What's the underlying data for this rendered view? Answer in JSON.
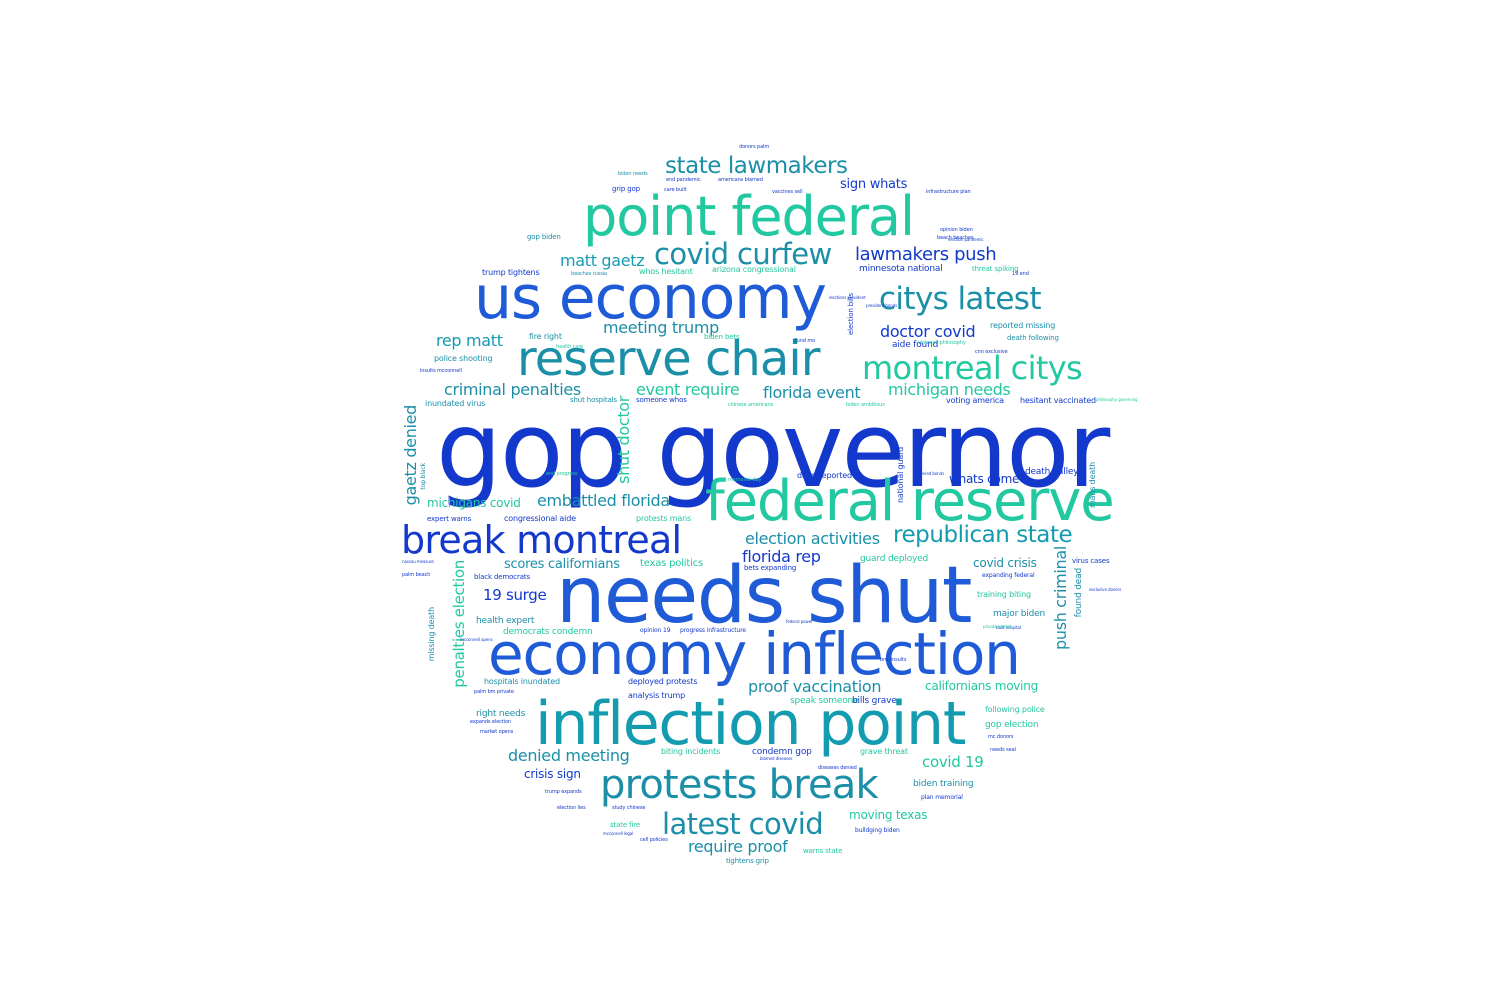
{
  "palette": {
    "blue": "#1339cc",
    "blue2": "#1f5bd6",
    "teal": "#139bb0",
    "teal2": "#1b8fa8",
    "green": "#21c8a0",
    "green2": "#2ed4a8"
  },
  "words": [
    {
      "text": "gop governor",
      "color": "blue"
    },
    {
      "text": "needs shut",
      "color": "blue2"
    },
    {
      "text": "us economy",
      "color": "blue2"
    },
    {
      "text": "economy inflection",
      "color": "blue2"
    },
    {
      "text": "inflection point",
      "color": "teal"
    },
    {
      "text": "federal reserve",
      "color": "green"
    },
    {
      "text": "point federal",
      "color": "green"
    },
    {
      "text": "reserve chair",
      "color": "teal2"
    },
    {
      "text": "break montreal",
      "color": "blue"
    },
    {
      "text": "protests break",
      "color": "teal2"
    },
    {
      "text": "latest covid",
      "color": "teal2"
    },
    {
      "text": "montreal citys",
      "color": "green"
    },
    {
      "text": "citys latest",
      "color": "teal2"
    },
    {
      "text": "covid curfew",
      "color": "teal2"
    },
    {
      "text": "state lawmakers",
      "color": "teal2"
    },
    {
      "text": "republican state",
      "color": "teal"
    },
    {
      "text": "lawmakers push",
      "color": "blue"
    },
    {
      "text": "matt gaetz",
      "color": "teal"
    },
    {
      "text": "meeting trump",
      "color": "teal2"
    },
    {
      "text": "rep matt",
      "color": "teal"
    },
    {
      "text": "doctor covid",
      "color": "blue"
    },
    {
      "text": "criminal penalties",
      "color": "teal2"
    },
    {
      "text": "event require",
      "color": "green"
    },
    {
      "text": "florida event",
      "color": "teal2"
    },
    {
      "text": "michigan needs",
      "color": "green"
    },
    {
      "text": "embattled florida",
      "color": "teal2"
    },
    {
      "text": "election activities",
      "color": "teal2"
    },
    {
      "text": "florida rep",
      "color": "blue"
    },
    {
      "text": "proof vaccination",
      "color": "teal2"
    },
    {
      "text": "denied meeting",
      "color": "teal2"
    },
    {
      "text": "require proof",
      "color": "teal2"
    },
    {
      "text": "covid 19",
      "color": "green"
    },
    {
      "text": "19 surge",
      "color": "blue"
    },
    {
      "text": "scores californians",
      "color": "teal2"
    },
    {
      "text": "sign whats",
      "color": "blue"
    },
    {
      "text": "whats come",
      "color": "blue"
    },
    {
      "text": "covid crisis",
      "color": "teal2"
    },
    {
      "text": "crisis sign",
      "color": "blue"
    },
    {
      "text": "californians moving",
      "color": "green"
    },
    {
      "text": "moving texas",
      "color": "green"
    },
    {
      "text": "michigans covid",
      "color": "green"
    },
    {
      "text": "texas politics",
      "color": "green"
    },
    {
      "text": "minnesota national",
      "color": "blue"
    },
    {
      "text": "aide found",
      "color": "blue"
    },
    {
      "text": "major biden",
      "color": "teal2"
    },
    {
      "text": "gop election",
      "color": "green"
    },
    {
      "text": "death valley",
      "color": "blue"
    },
    {
      "text": "biden training",
      "color": "teal2"
    },
    {
      "text": "right needs",
      "color": "teal2"
    },
    {
      "text": "health expert",
      "color": "teal2"
    },
    {
      "text": "democrats condemn",
      "color": "green"
    },
    {
      "text": "hospitals inundated",
      "color": "teal2"
    },
    {
      "text": "deployed protests",
      "color": "blue"
    },
    {
      "text": "analysis trump",
      "color": "blue"
    },
    {
      "text": "speak someone",
      "color": "green"
    },
    {
      "text": "bills grave",
      "color": "blue"
    },
    {
      "text": "condemn gop",
      "color": "blue"
    },
    {
      "text": "biting incidents",
      "color": "green"
    },
    {
      "text": "grave threat",
      "color": "green"
    },
    {
      "text": "guard deployed",
      "color": "green"
    },
    {
      "text": "bets expanding",
      "color": "blue"
    },
    {
      "text": "expanding federal",
      "color": "blue"
    },
    {
      "text": "training biting",
      "color": "green"
    },
    {
      "text": "following police",
      "color": "green"
    },
    {
      "text": "police shooting",
      "color": "teal2"
    },
    {
      "text": "inundated virus",
      "color": "teal2"
    },
    {
      "text": "shut hospitals",
      "color": "teal2"
    },
    {
      "text": "someone whos",
      "color": "blue"
    },
    {
      "text": "voting america",
      "color": "blue"
    },
    {
      "text": "hesitant vaccinated",
      "color": "blue"
    },
    {
      "text": "reported missing",
      "color": "teal2"
    },
    {
      "text": "death following",
      "color": "teal2"
    },
    {
      "text": "dead reported",
      "color": "blue"
    },
    {
      "text": "expert warns",
      "color": "blue"
    },
    {
      "text": "congressional aide",
      "color": "blue"
    },
    {
      "text": "protests mans",
      "color": "green"
    },
    {
      "text": "black democrats",
      "color": "blue"
    },
    {
      "text": "palm beach",
      "color": "blue"
    },
    {
      "text": "trump tightens",
      "color": "blue"
    },
    {
      "text": "gop biden",
      "color": "teal2"
    },
    {
      "text": "grip gop",
      "color": "blue"
    },
    {
      "text": "whos hesitant",
      "color": "green"
    },
    {
      "text": "arizona congressional",
      "color": "green"
    },
    {
      "text": "threat spiking",
      "color": "green"
    },
    {
      "text": "fire right",
      "color": "teal2"
    },
    {
      "text": "biden bets",
      "color": "green"
    },
    {
      "text": "health care",
      "color": "green"
    },
    {
      "text": "warns state",
      "color": "green"
    },
    {
      "text": "tightens grip",
      "color": "teal2"
    },
    {
      "text": "bulldging biden",
      "color": "blue"
    },
    {
      "text": "state fire",
      "color": "green"
    },
    {
      "text": "opinion 19",
      "color": "blue"
    },
    {
      "text": "progress infrastructure",
      "color": "blue"
    },
    {
      "text": "plan memorial",
      "color": "blue"
    },
    {
      "text": "virus cases",
      "color": "blue"
    },
    {
      "text": "gaetz denied",
      "color": "teal2"
    },
    {
      "text": "shut doctor",
      "color": "green"
    },
    {
      "text": "penalties election",
      "color": "green"
    },
    {
      "text": "push criminal",
      "color": "teal2"
    },
    {
      "text": "found dead",
      "color": "teal2"
    },
    {
      "text": "national guard",
      "color": "blue"
    },
    {
      "text": "missing death",
      "color": "teal2"
    },
    {
      "text": "mans death",
      "color": "teal2"
    },
    {
      "text": "election bills",
      "color": "blue"
    },
    {
      "text": "top black",
      "color": "teal2"
    },
    {
      "text": "donors palm",
      "color": "blue"
    },
    {
      "text": "biden needs",
      "color": "teal2"
    },
    {
      "text": "end pandemic",
      "color": "blue"
    },
    {
      "text": "americans blamed",
      "color": "blue"
    },
    {
      "text": "care built",
      "color": "blue"
    },
    {
      "text": "vaccines sell",
      "color": "blue"
    },
    {
      "text": "infrastructure plan",
      "color": "blue"
    },
    {
      "text": "opinion biden",
      "color": "blue"
    },
    {
      "text": "beach beaches",
      "color": "blue"
    },
    {
      "text": "19 end",
      "color": "blue"
    },
    {
      "text": "beaches russia",
      "color": "teal2"
    },
    {
      "text": "election pandemic",
      "color": "blue"
    },
    {
      "text": "fund mo",
      "color": "blue"
    },
    {
      "text": "insults mcconnell",
      "color": "blue"
    },
    {
      "text": "violence philosophy",
      "color": "green"
    },
    {
      "text": "cnn exclusive",
      "color": "blue"
    },
    {
      "text": "elections president",
      "color": "blue"
    },
    {
      "text": "president bonds",
      "color": "blue"
    },
    {
      "text": "chinese americans",
      "color": "green"
    },
    {
      "text": "biden ambitious",
      "color": "green"
    },
    {
      "text": "memorial day",
      "color": "green"
    },
    {
      "text": "denied bonds",
      "color": "blue"
    },
    {
      "text": "end progress",
      "color": "green"
    },
    {
      "text": "nassau measure",
      "color": "blue"
    },
    {
      "text": "federal power",
      "color": "blue"
    },
    {
      "text": "built hospital",
      "color": "blue"
    },
    {
      "text": "private market",
      "color": "green"
    },
    {
      "text": "bm. insults",
      "color": "blue"
    },
    {
      "text": "philosophy governing",
      "color": "green"
    },
    {
      "text": "exclusive donors",
      "color": "blue"
    },
    {
      "text": "mcconnell opens",
      "color": "blue"
    },
    {
      "text": "palm bm private",
      "color": "blue"
    },
    {
      "text": "expands election",
      "color": "blue"
    },
    {
      "text": "market opens",
      "color": "blue"
    },
    {
      "text": "trump expands",
      "color": "blue"
    },
    {
      "text": "election lies",
      "color": "blue"
    },
    {
      "text": "mcconnell legal",
      "color": "blue"
    },
    {
      "text": "cell policies",
      "color": "blue"
    },
    {
      "text": "study chinese",
      "color": "blue"
    },
    {
      "text": "diseases denied",
      "color": "blue"
    },
    {
      "text": "blamed diseases",
      "color": "blue"
    },
    {
      "text": "mc donors",
      "color": "blue"
    },
    {
      "text": "needs seal",
      "color": "blue"
    }
  ]
}
